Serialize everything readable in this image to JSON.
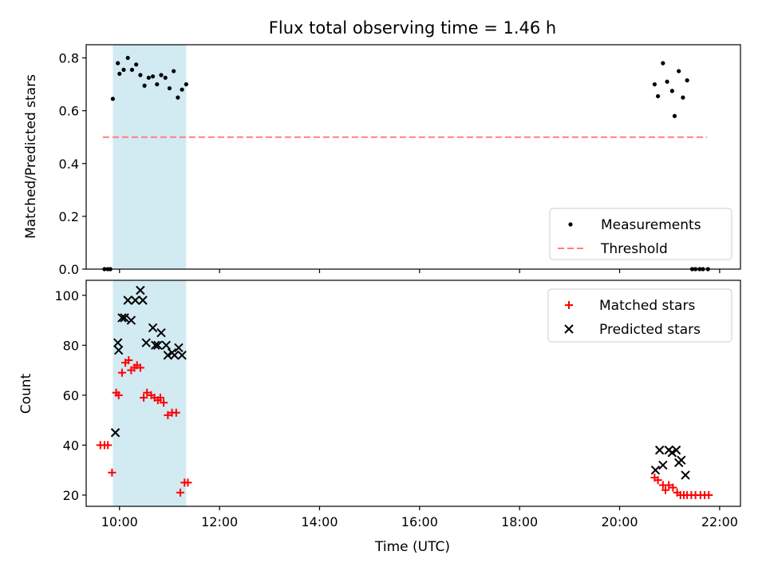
{
  "chart_data": [
    {
      "type": "scatter",
      "title": "Flux total observing time = 1.46 h",
      "xlabel": "",
      "ylabel": "Matched/Predicted stars",
      "x_unit": "hours UTC",
      "xlim": [
        "09:20",
        "22:25"
      ],
      "ylim": [
        0,
        0.85
      ],
      "yticks": [
        "0.0",
        "0.2",
        "0.4",
        "0.6",
        "0.8"
      ],
      "shaded_interval": {
        "start": "09:52",
        "end": "11:20",
        "color": "#add8e6"
      },
      "threshold": {
        "name": "Threshold",
        "value": 0.5,
        "x_start": "09:40",
        "x_end": "21:45",
        "color": "#ff7f7f",
        "style": "dashed"
      },
      "series": [
        {
          "name": "Measurements",
          "marker": "dot",
          "color": "#000000",
          "x": [
            "09:42",
            "09:46",
            "09:49",
            "09:52",
            "09:58",
            "10:00",
            "10:05",
            "10:10",
            "10:15",
            "10:20",
            "10:25",
            "10:30",
            "10:35",
            "10:40",
            "10:45",
            "10:50",
            "10:55",
            "11:00",
            "11:05",
            "11:10",
            "11:15",
            "11:20",
            "20:42",
            "20:46",
            "20:52",
            "20:57",
            "21:03",
            "21:06",
            "21:11",
            "21:16",
            "21:21",
            "21:27",
            "21:31",
            "21:36",
            "21:40",
            "21:46"
          ],
          "y": [
            0,
            0,
            0,
            0.645,
            0.78,
            0.74,
            0.755,
            0.8,
            0.755,
            0.775,
            0.735,
            0.695,
            0.725,
            0.73,
            0.7,
            0.735,
            0.725,
            0.685,
            0.75,
            0.65,
            0.68,
            0.7,
            0.7,
            0.655,
            0.78,
            0.71,
            0.675,
            0.58,
            0.75,
            0.65,
            0.715,
            0,
            0,
            0,
            0,
            0
          ]
        }
      ],
      "legend": {
        "placement": "lower-right",
        "entries": [
          "Measurements",
          "Threshold"
        ]
      }
    },
    {
      "type": "scatter",
      "title": "",
      "xlabel": "Time (UTC)",
      "ylabel": "Count",
      "x_unit": "hours UTC",
      "xlim": [
        "09:20",
        "22:25"
      ],
      "ylim": [
        15.5,
        106
      ],
      "yticks": [
        "20",
        "40",
        "60",
        "80",
        "100"
      ],
      "xticks": [
        "10:00",
        "12:00",
        "14:00",
        "16:00",
        "18:00",
        "20:00",
        "22:00"
      ],
      "shaded_interval": {
        "start": "09:52",
        "end": "11:20",
        "color": "#add8e6"
      },
      "series": [
        {
          "name": "Matched stars",
          "marker": "plus",
          "color": "#ff0000",
          "x": [
            "09:37",
            "09:42",
            "09:46",
            "09:51",
            "09:56",
            "09:59",
            "10:03",
            "10:07",
            "10:11",
            "10:14",
            "10:18",
            "10:21",
            "10:25",
            "10:29",
            "10:33",
            "10:38",
            "10:42",
            "10:46",
            "10:49",
            "10:53",
            "10:58",
            "11:03",
            "11:08",
            "11:13",
            "11:18",
            "11:22",
            "20:42",
            "20:46",
            "20:52",
            "20:55",
            "20:59",
            "21:04",
            "21:09",
            "21:13",
            "21:17",
            "21:21",
            "21:26",
            "21:31",
            "21:37",
            "21:42",
            "21:47"
          ],
          "y": [
            40,
            40,
            40,
            29,
            61,
            60,
            69,
            73,
            74,
            70,
            71,
            72,
            71,
            59,
            61,
            60,
            59,
            58,
            59,
            57,
            52,
            53,
            53,
            21,
            25,
            25,
            27,
            26,
            24,
            22,
            24,
            23,
            21,
            20,
            20,
            20,
            20,
            20,
            20,
            20,
            20
          ]
        },
        {
          "name": "Predicted stars",
          "marker": "x",
          "color": "#000000",
          "x": [
            "09:55",
            "09:58",
            "09:59",
            "10:03",
            "10:06",
            "10:10",
            "10:14",
            "10:19",
            "10:25",
            "10:28",
            "10:32",
            "10:40",
            "10:43",
            "10:46",
            "10:50",
            "10:56",
            "10:58",
            "11:03",
            "11:06",
            "11:11",
            "11:15",
            "20:43",
            "20:48",
            "20:52",
            "20:59",
            "21:03",
            "21:08",
            "21:11",
            "21:14",
            "21:19"
          ],
          "y": [
            45,
            81,
            78,
            91,
            91,
            98,
            90,
            98,
            102,
            98,
            81,
            87,
            80,
            80,
            85,
            80,
            76,
            77,
            76,
            79,
            76,
            30,
            38,
            32,
            38,
            37,
            38,
            33,
            34,
            28
          ]
        }
      ],
      "legend": {
        "placement": "upper-right",
        "entries": [
          "Matched stars",
          "Predicted stars"
        ]
      }
    }
  ]
}
